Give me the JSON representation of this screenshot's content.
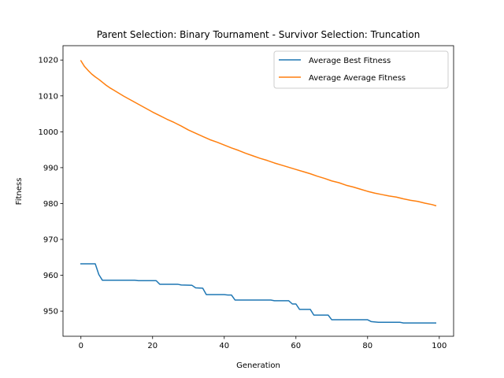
{
  "chart_data": {
    "type": "line",
    "title": "Parent Selection: Binary Tournament - Survivor Selection: Truncation",
    "xlabel": "Generation",
    "ylabel": "Fitness",
    "xlim": [
      -5,
      104
    ],
    "ylim": [
      943,
      1024
    ],
    "xticks": [
      0,
      20,
      40,
      60,
      80,
      100
    ],
    "yticks": [
      950,
      960,
      970,
      980,
      990,
      1000,
      1010,
      1020
    ],
    "grid": false,
    "legend_position": "top-right",
    "series": [
      {
        "name": "Average Best Fitness",
        "color": "#1f77b4",
        "points": [
          [
            0,
            963.2
          ],
          [
            4,
            963.2
          ],
          [
            5,
            960.2
          ],
          [
            6,
            958.6
          ],
          [
            15,
            958.6
          ],
          [
            16,
            958.5
          ],
          [
            21,
            958.5
          ],
          [
            22,
            957.5
          ],
          [
            27,
            957.5
          ],
          [
            28,
            957.3
          ],
          [
            31,
            957.2
          ],
          [
            32,
            956.5
          ],
          [
            34,
            956.4
          ],
          [
            35,
            954.6
          ],
          [
            40,
            954.6
          ],
          [
            41,
            954.5
          ],
          [
            42,
            954.5
          ],
          [
            43,
            953.1
          ],
          [
            53,
            953.1
          ],
          [
            54,
            952.9
          ],
          [
            58,
            952.9
          ],
          [
            59,
            952.0
          ],
          [
            60,
            952.0
          ],
          [
            61,
            950.5
          ],
          [
            64,
            950.5
          ],
          [
            65,
            948.9
          ],
          [
            69,
            948.9
          ],
          [
            70,
            947.6
          ],
          [
            80,
            947.6
          ],
          [
            81,
            947.1
          ],
          [
            83,
            946.9
          ],
          [
            89,
            946.9
          ],
          [
            90,
            946.7
          ],
          [
            99,
            946.7
          ]
        ]
      },
      {
        "name": "Average Average Fitness",
        "color": "#ff7f0e",
        "points": [
          [
            0,
            1019.8
          ],
          [
            1,
            1018.2
          ],
          [
            2,
            1017.1
          ],
          [
            3,
            1016.1
          ],
          [
            4,
            1015.3
          ],
          [
            5,
            1014.6
          ],
          [
            6,
            1013.8
          ],
          [
            7,
            1013.0
          ],
          [
            8,
            1012.3
          ],
          [
            9,
            1011.7
          ],
          [
            10,
            1011.1
          ],
          [
            12,
            1009.9
          ],
          [
            14,
            1008.8
          ],
          [
            16,
            1007.7
          ],
          [
            18,
            1006.6
          ],
          [
            20,
            1005.5
          ],
          [
            22,
            1004.5
          ],
          [
            24,
            1003.5
          ],
          [
            26,
            1002.6
          ],
          [
            28,
            1001.6
          ],
          [
            30,
            1000.5
          ],
          [
            32,
            999.6
          ],
          [
            34,
            998.7
          ],
          [
            36,
            997.8
          ],
          [
            38,
            997.1
          ],
          [
            40,
            996.3
          ],
          [
            42,
            995.5
          ],
          [
            44,
            994.8
          ],
          [
            46,
            994.0
          ],
          [
            48,
            993.3
          ],
          [
            50,
            992.6
          ],
          [
            52,
            992.0
          ],
          [
            54,
            991.3
          ],
          [
            56,
            990.7
          ],
          [
            58,
            990.1
          ],
          [
            60,
            989.5
          ],
          [
            62,
            988.9
          ],
          [
            64,
            988.3
          ],
          [
            66,
            987.6
          ],
          [
            68,
            987.0
          ],
          [
            70,
            986.3
          ],
          [
            72,
            985.8
          ],
          [
            74,
            985.1
          ],
          [
            76,
            984.6
          ],
          [
            78,
            984.0
          ],
          [
            80,
            983.4
          ],
          [
            82,
            982.9
          ],
          [
            84,
            982.5
          ],
          [
            86,
            982.1
          ],
          [
            88,
            981.8
          ],
          [
            90,
            981.3
          ],
          [
            92,
            980.9
          ],
          [
            94,
            980.6
          ],
          [
            96,
            980.1
          ],
          [
            98,
            979.7
          ],
          [
            99,
            979.4
          ]
        ]
      }
    ]
  }
}
